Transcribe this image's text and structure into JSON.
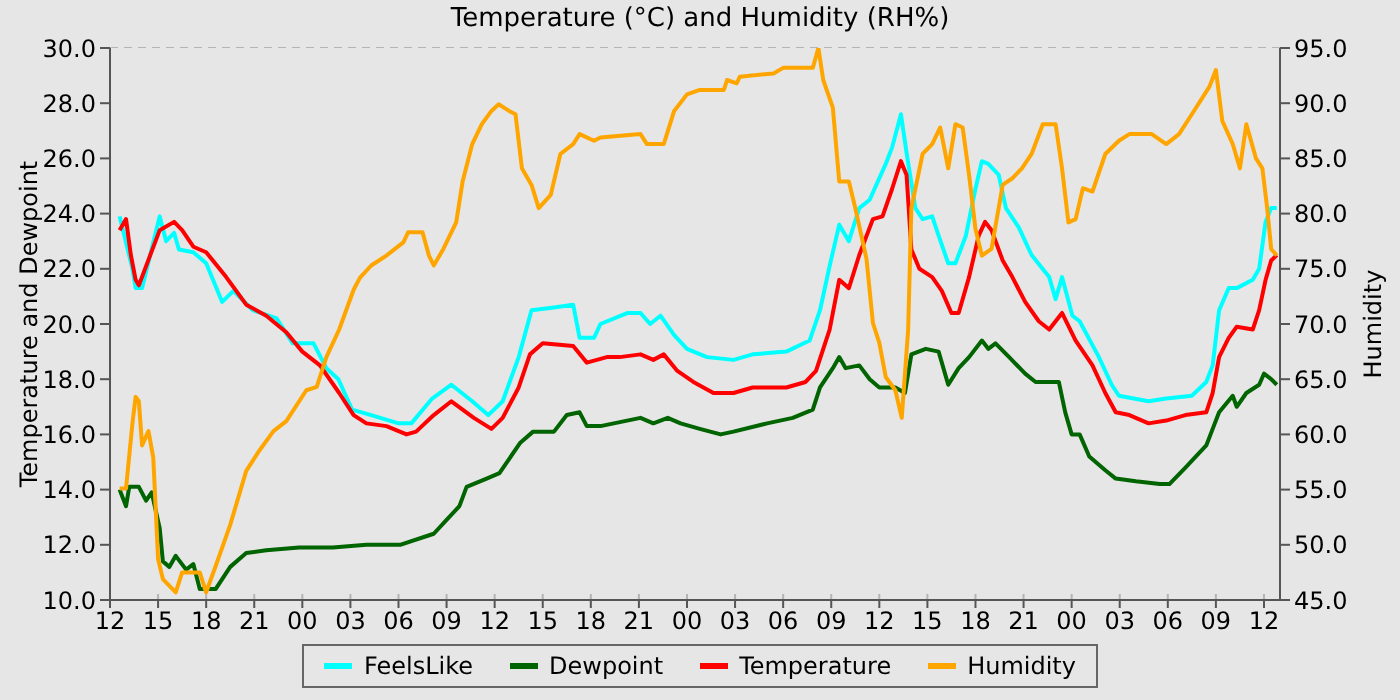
{
  "chart_data": {
    "type": "line",
    "title": "Temperature (°C) and Humidity (RH%)",
    "ylabel": "Temperature and Dewpoint",
    "y2label": "Humidity",
    "xlim": [
      12,
      85
    ],
    "xticks": [
      {
        "value": 12,
        "label": "12"
      },
      {
        "value": 15,
        "label": "15"
      },
      {
        "value": 18,
        "label": "18"
      },
      {
        "value": 21,
        "label": "21"
      },
      {
        "value": 24,
        "label": "00"
      },
      {
        "value": 27,
        "label": "03"
      },
      {
        "value": 30,
        "label": "06"
      },
      {
        "value": 33,
        "label": "09"
      },
      {
        "value": 36,
        "label": "12"
      },
      {
        "value": 39,
        "label": "15"
      },
      {
        "value": 42,
        "label": "18"
      },
      {
        "value": 45,
        "label": "21"
      },
      {
        "value": 48,
        "label": "00"
      },
      {
        "value": 51,
        "label": "03"
      },
      {
        "value": 54,
        "label": "06"
      },
      {
        "value": 57,
        "label": "09"
      },
      {
        "value": 60,
        "label": "12"
      },
      {
        "value": 63,
        "label": "15"
      },
      {
        "value": 66,
        "label": "18"
      },
      {
        "value": 69,
        "label": "21"
      },
      {
        "value": 72,
        "label": "00"
      },
      {
        "value": 75,
        "label": "03"
      },
      {
        "value": 78,
        "label": "06"
      },
      {
        "value": 81,
        "label": "09"
      },
      {
        "value": 84,
        "label": "12"
      }
    ],
    "ylim": [
      10,
      30
    ],
    "yticks": [
      {
        "value": 10,
        "label": "10.0"
      },
      {
        "value": 12,
        "label": "12.0"
      },
      {
        "value": 14,
        "label": "14.0"
      },
      {
        "value": 16,
        "label": "16.0"
      },
      {
        "value": 18,
        "label": "18.0"
      },
      {
        "value": 20,
        "label": "20.0"
      },
      {
        "value": 22,
        "label": "22.0"
      },
      {
        "value": 24,
        "label": "24.0"
      },
      {
        "value": 26,
        "label": "26.0"
      },
      {
        "value": 28,
        "label": "28.0"
      },
      {
        "value": 30,
        "label": "30.0"
      }
    ],
    "y2lim": [
      45,
      95
    ],
    "y2ticks": [
      {
        "value": 45,
        "label": "45.0"
      },
      {
        "value": 50,
        "label": "50.0"
      },
      {
        "value": 55,
        "label": "55.0"
      },
      {
        "value": 60,
        "label": "60.0"
      },
      {
        "value": 65,
        "label": "65.0"
      },
      {
        "value": 70,
        "label": "70.0"
      },
      {
        "value": 75,
        "label": "75.0"
      },
      {
        "value": 80,
        "label": "80.0"
      },
      {
        "value": 85,
        "label": "85.0"
      },
      {
        "value": 90,
        "label": "90.0"
      },
      {
        "value": 95,
        "label": "95.0"
      }
    ],
    "grid": true,
    "legend": "bottom",
    "line_style": "solid",
    "series": [
      {
        "name": "FeelsLike",
        "color": "#00ffff",
        "x": [
          12.6,
          13.4,
          13.6,
          14.0,
          15.1,
          15.5,
          16.0,
          16.3,
          17.2,
          18.0,
          19.0,
          19.7,
          20.9,
          22.4,
          23.4,
          24.7,
          25.5,
          26.25,
          27.1,
          28.3,
          30.0,
          30.8,
          32.1,
          33.3,
          34.6,
          35.6,
          36.5,
          37.5,
          38.3,
          39.7,
          40.9,
          41.3,
          42.2,
          42.6,
          44.3,
          45.1,
          45.7,
          46.35,
          47.2,
          48.0,
          49.25,
          50.9,
          52.1,
          54.2,
          55.65,
          56.3,
          56.9,
          57.5,
          58.1,
          58.75,
          59.4,
          60.4,
          60.8,
          61.35,
          61.7,
          62.25,
          62.7,
          63.3,
          63.7,
          64.3,
          64.75,
          65.4,
          66.0,
          66.4,
          66.8,
          67.45,
          67.9,
          68.7,
          69.5,
          70.6,
          71.0,
          71.4,
          72.05,
          72.5,
          73.7,
          74.5,
          74.95,
          76.8,
          77.9,
          79.5,
          80.4,
          80.8,
          81.2,
          81.8,
          82.3,
          83.3,
          83.7,
          84.1,
          84.45,
          84.8
        ],
        "values": [
          23.9,
          22.0,
          21.3,
          21.3,
          23.9,
          23.0,
          23.3,
          22.7,
          22.6,
          22.2,
          20.8,
          21.2,
          20.5,
          20.2,
          19.3,
          19.3,
          18.4,
          18.0,
          16.9,
          16.7,
          16.4,
          16.4,
          17.3,
          17.8,
          17.2,
          16.7,
          17.2,
          18.8,
          20.5,
          20.6,
          20.7,
          19.5,
          19.5,
          20.0,
          20.4,
          20.4,
          20.0,
          20.3,
          19.6,
          19.1,
          18.8,
          18.7,
          18.9,
          19.0,
          19.4,
          20.5,
          22.1,
          23.6,
          23.0,
          24.2,
          24.5,
          25.8,
          26.4,
          27.6,
          26.2,
          24.2,
          23.8,
          23.9,
          23.2,
          22.2,
          22.2,
          23.2,
          24.9,
          25.9,
          25.8,
          25.4,
          24.2,
          23.5,
          22.5,
          21.7,
          20.9,
          21.7,
          20.3,
          20.1,
          18.8,
          17.8,
          17.4,
          17.2,
          17.3,
          17.4,
          17.9,
          18.5,
          20.5,
          21.3,
          21.3,
          21.6,
          22.0,
          23.7,
          24.2,
          24.2
        ]
      },
      {
        "name": "Dewpoint",
        "color": "#006400",
        "x": [
          12.6,
          13.0,
          13.2,
          13.8,
          14.25,
          14.6,
          15.1,
          15.3,
          15.7,
          16.1,
          16.75,
          17.2,
          17.6,
          18.6,
          19.5,
          20.5,
          21.75,
          23.8,
          25.9,
          28.0,
          30.1,
          32.2,
          33.0,
          33.8,
          34.25,
          35.5,
          36.3,
          37.6,
          38.4,
          39.7,
          40.5,
          41.3,
          41.75,
          42.6,
          45.1,
          45.9,
          46.8,
          47.6,
          48.8,
          50.1,
          50.9,
          53.0,
          54.6,
          55.85,
          56.3,
          57.1,
          57.5,
          57.9,
          58.75,
          59.4,
          60.0,
          61.0,
          61.6,
          62.0,
          62.9,
          63.7,
          64.3,
          64.95,
          65.6,
          66.4,
          66.8,
          67.25,
          68.1,
          69.1,
          69.75,
          71.2,
          71.6,
          72.0,
          72.5,
          73.1,
          74.1,
          74.75,
          76.0,
          77.5,
          78.1,
          79.1,
          80.4,
          80.8,
          81.2,
          82.05,
          82.3,
          82.9,
          83.7,
          84.0,
          84.45,
          84.8
        ],
        "values": [
          14.0,
          13.4,
          14.1,
          14.1,
          13.6,
          13.9,
          12.6,
          11.4,
          11.2,
          11.6,
          11.1,
          11.3,
          10.4,
          10.4,
          11.2,
          11.7,
          11.8,
          11.9,
          11.9,
          12.0,
          12.0,
          12.4,
          12.9,
          13.4,
          14.1,
          14.4,
          14.6,
          15.7,
          16.1,
          16.1,
          16.7,
          16.8,
          16.3,
          16.3,
          16.6,
          16.4,
          16.6,
          16.4,
          16.2,
          16.0,
          16.1,
          16.4,
          16.6,
          16.9,
          17.7,
          18.4,
          18.8,
          18.4,
          18.5,
          18.0,
          17.7,
          17.7,
          17.5,
          18.9,
          19.1,
          19.0,
          17.8,
          18.4,
          18.8,
          19.4,
          19.1,
          19.3,
          18.8,
          18.2,
          17.9,
          17.9,
          16.8,
          16.0,
          16.0,
          15.2,
          14.7,
          14.4,
          14.3,
          14.2,
          14.2,
          14.8,
          15.6,
          16.2,
          16.8,
          17.4,
          17.0,
          17.5,
          17.8,
          18.2,
          18.0,
          17.8
        ]
      },
      {
        "name": "Temperature",
        "color": "#ff0000",
        "x": [
          12.6,
          13.0,
          13.3,
          13.6,
          13.8,
          15.1,
          16.0,
          16.5,
          17.2,
          18.0,
          19.25,
          20.5,
          21.75,
          23.0,
          24.0,
          25.1,
          26.3,
          27.2,
          28.0,
          29.25,
          30.5,
          31.1,
          32.2,
          33.3,
          34.7,
          35.8,
          36.5,
          37.5,
          38.2,
          39.0,
          40.9,
          41.75,
          43.0,
          43.8,
          45.1,
          45.9,
          46.55,
          47.4,
          48.4,
          49.65,
          50.9,
          52.1,
          54.2,
          55.4,
          56.05,
          56.9,
          57.5,
          58.1,
          58.75,
          59.6,
          60.2,
          60.8,
          61.35,
          61.7,
          62.0,
          62.5,
          63.3,
          63.9,
          64.5,
          64.95,
          65.6,
          66.2,
          66.6,
          67.0,
          67.7,
          68.3,
          69.1,
          69.95,
          70.6,
          71.4,
          72.25,
          73.3,
          74.1,
          74.75,
          75.6,
          76.8,
          77.9,
          79.1,
          80.4,
          80.8,
          81.2,
          81.8,
          82.3,
          83.3,
          83.7,
          84.1,
          84.45,
          84.8
        ],
        "values": [
          23.4,
          23.8,
          22.5,
          21.6,
          21.4,
          23.4,
          23.7,
          23.4,
          22.8,
          22.6,
          21.7,
          20.7,
          20.3,
          19.7,
          19.0,
          18.5,
          17.5,
          16.7,
          16.4,
          16.3,
          16.0,
          16.1,
          16.7,
          17.2,
          16.6,
          16.2,
          16.6,
          17.7,
          18.9,
          19.3,
          19.2,
          18.6,
          18.8,
          18.8,
          18.9,
          18.7,
          18.9,
          18.3,
          17.9,
          17.5,
          17.5,
          17.7,
          17.7,
          17.9,
          18.3,
          19.8,
          21.6,
          21.3,
          22.5,
          23.8,
          23.9,
          24.9,
          25.9,
          25.4,
          22.7,
          22.0,
          21.7,
          21.2,
          20.4,
          20.4,
          21.7,
          23.2,
          23.7,
          23.4,
          22.3,
          21.7,
          20.8,
          20.1,
          19.8,
          20.4,
          19.4,
          18.5,
          17.5,
          16.8,
          16.7,
          16.4,
          16.5,
          16.7,
          16.8,
          17.5,
          18.8,
          19.5,
          19.9,
          19.8,
          20.5,
          21.6,
          22.3,
          22.5
        ]
      },
      {
        "name": "Humidity",
        "color": "#ffa500",
        "axis": "y2",
        "x": [
          12.6,
          13.0,
          13.4,
          13.6,
          13.8,
          14.0,
          14.4,
          14.7,
          15.0,
          15.3,
          16.1,
          16.5,
          17.6,
          18.0,
          18.6,
          19.5,
          20.5,
          21.3,
          22.2,
          23.0,
          24.25,
          24.9,
          25.5,
          26.3,
          27.2,
          27.6,
          28.3,
          29.25,
          30.3,
          30.6,
          31.5,
          31.9,
          32.2,
          32.8,
          33.6,
          34.0,
          34.6,
          35.2,
          35.8,
          36.25,
          36.9,
          37.3,
          37.7,
          38.3,
          38.75,
          39.5,
          40.1,
          40.9,
          41.3,
          42.2,
          42.6,
          45.1,
          45.5,
          46.55,
          47.2,
          48.0,
          48.8,
          50.3,
          50.5,
          51.1,
          51.3,
          53.4,
          54.0,
          55.85,
          56.2,
          56.5,
          57.1,
          57.5,
          58.1,
          58.5,
          59.2,
          59.6,
          60.0,
          60.4,
          61.0,
          61.4,
          61.8,
          62.0,
          62.7,
          63.3,
          63.8,
          64.3,
          64.75,
          65.2,
          65.6,
          66.0,
          66.4,
          67.0,
          67.7,
          68.3,
          68.9,
          69.5,
          70.2,
          71.0,
          71.4,
          71.8,
          72.25,
          72.7,
          73.3,
          74.1,
          74.95,
          75.6,
          77.0,
          77.9,
          78.7,
          79.5,
          80.6,
          81.0,
          81.4,
          82.05,
          82.5,
          82.9,
          83.5,
          83.9,
          84.2,
          84.45,
          84.8
        ],
        "values": [
          55.1,
          55.1,
          61.0,
          63.4,
          63.0,
          59.0,
          60.3,
          57.9,
          48.7,
          46.9,
          45.7,
          47.5,
          47.5,
          45.7,
          48.1,
          51.8,
          56.7,
          58.5,
          60.3,
          61.2,
          64.0,
          64.3,
          67.0,
          69.5,
          73.1,
          74.2,
          75.3,
          76.2,
          77.4,
          78.3,
          78.3,
          76.2,
          75.3,
          76.8,
          79.2,
          82.9,
          86.3,
          88.1,
          89.3,
          89.9,
          89.3,
          89.0,
          84.1,
          82.6,
          80.5,
          81.7,
          85.4,
          86.3,
          87.2,
          86.6,
          86.9,
          87.2,
          86.3,
          86.3,
          89.3,
          90.8,
          91.2,
          91.2,
          92.1,
          91.8,
          92.4,
          92.7,
          93.2,
          93.2,
          95.0,
          92.1,
          89.6,
          82.9,
          82.9,
          80.5,
          75.9,
          70.1,
          68.3,
          65.2,
          64.0,
          61.5,
          69.5,
          80.5,
          85.4,
          86.3,
          87.8,
          84.1,
          88.1,
          87.8,
          83.5,
          78.6,
          76.2,
          76.8,
          82.6,
          83.2,
          84.1,
          85.4,
          88.1,
          88.1,
          84.1,
          79.2,
          79.5,
          82.3,
          82.0,
          85.4,
          86.6,
          87.2,
          87.2,
          86.3,
          87.2,
          89.0,
          91.5,
          93.0,
          88.4,
          86.3,
          84.1,
          88.1,
          85.0,
          84.1,
          80.5,
          76.8,
          76.2
        ]
      }
    ]
  }
}
